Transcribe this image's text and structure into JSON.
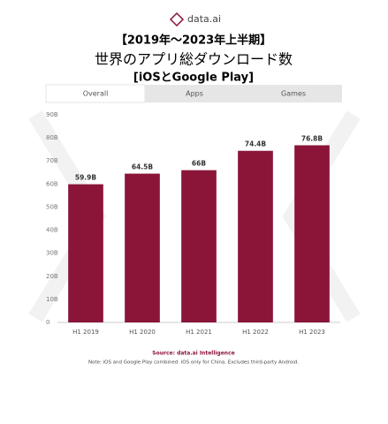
{
  "logo": "data.ai",
  "chart_data": {
    "type": "bar",
    "title": "【2019年～2023年上半期】",
    "subtitle": "世界のアプリ総ダウンロード数",
    "subtitle2": "[iOSとGoogle Play]",
    "tabs": [
      "Overall",
      "Apps",
      "Games"
    ],
    "categories": [
      "H1 2019",
      "H1 2020",
      "H1 2021",
      "H1 2022",
      "H1 2023"
    ],
    "values": [
      59.9,
      64.5,
      66,
      74.4,
      76.8
    ],
    "value_labels": [
      "59.9B",
      "64.5B",
      "66B",
      "74.4B",
      "76.8B"
    ],
    "color": "#8a1538",
    "ylim": [
      0,
      90
    ],
    "yticks": [
      0,
      {
        "value": 10,
        "label": "10B"
      },
      {
        "value": 20,
        "label": "20B"
      },
      {
        "value": 30,
        "label": "30B"
      },
      {
        "value": 40,
        "label": "40B"
      },
      {
        "value": 50,
        "label": "50B"
      },
      {
        "value": 60,
        "label": "60B"
      },
      {
        "value": 70,
        "label": "70B"
      },
      {
        "value": 80,
        "label": "80B"
      },
      {
        "value": 90,
        "label": "90B"
      }
    ],
    "grid": false,
    "source": "Source: data.ai Intelligence",
    "note": "Note: iOS and Google Play combined. iOS only for China. Excludes third-party Android."
  }
}
